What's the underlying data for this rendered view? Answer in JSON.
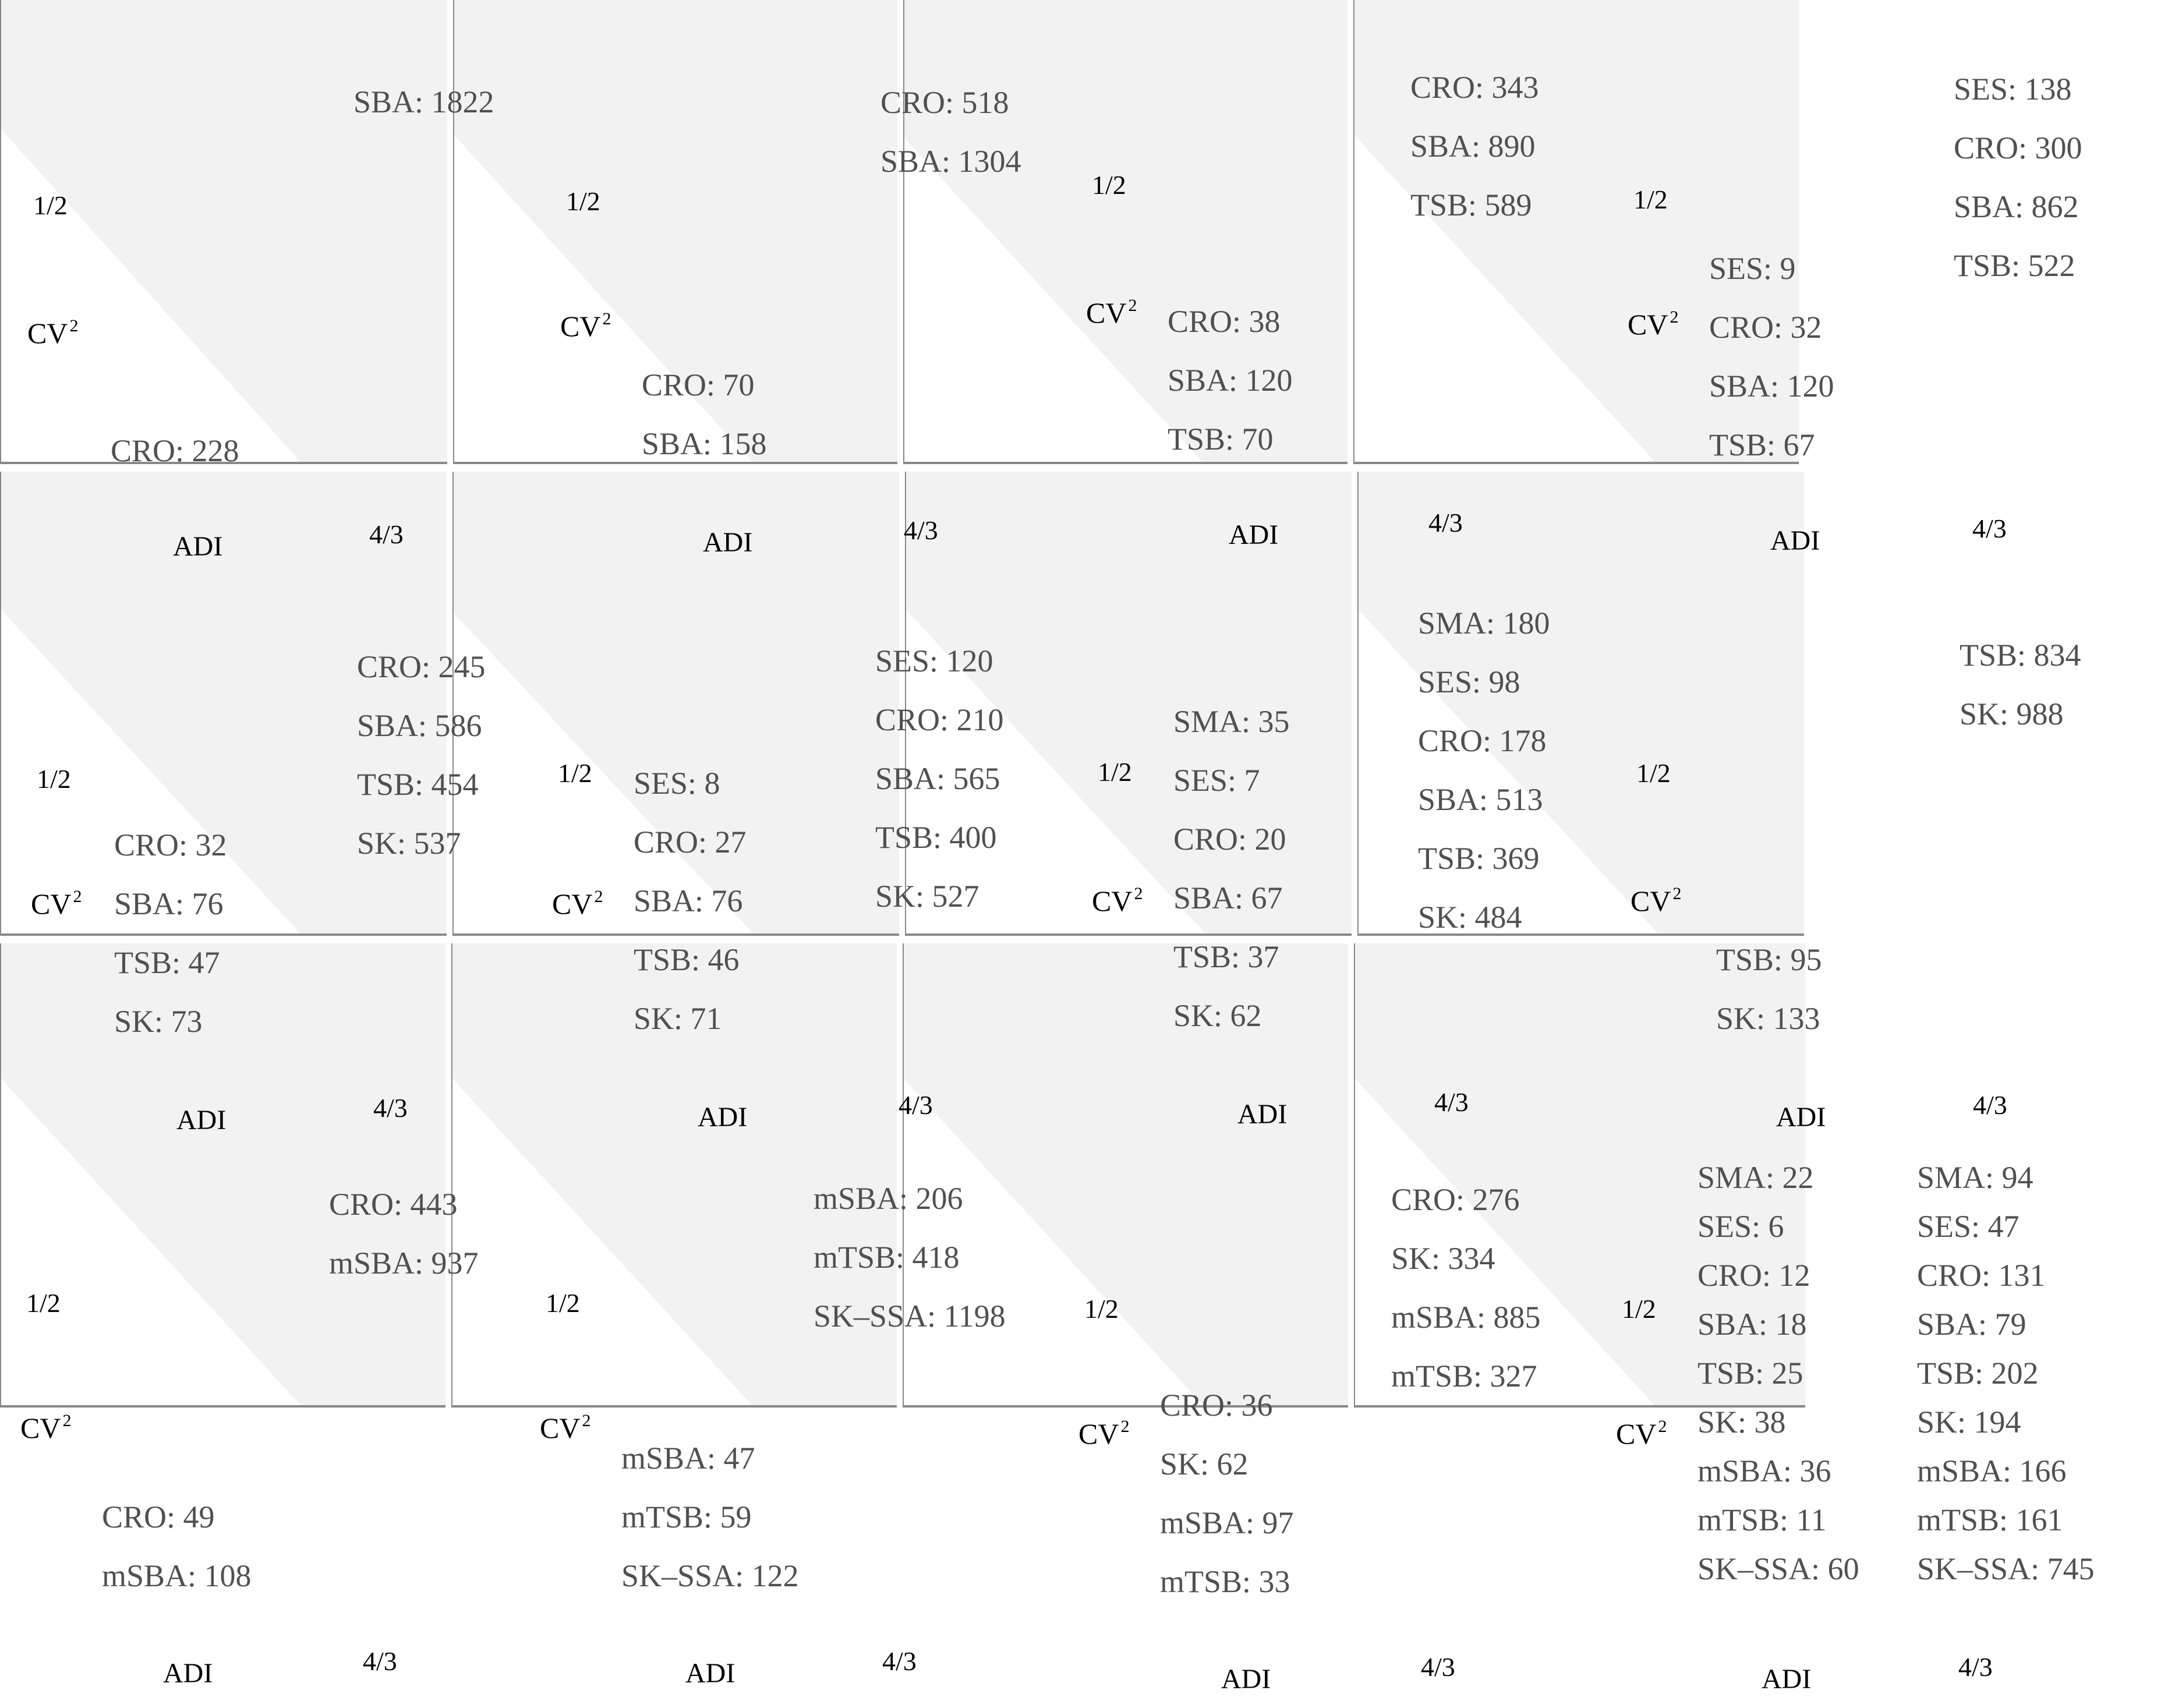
{
  "colors": {
    "shaded": "#f2f2f2",
    "axis": "#888888",
    "text": "#505050"
  },
  "panels": [
    {
      "x_label": "ADI",
      "x_tick": "4/3",
      "y_label": "CV",
      "y_label_sup": "2",
      "y_tick": "1/2",
      "upper": [
        "SBA: 1822"
      ],
      "lower": [
        "CRO: 228"
      ]
    },
    {
      "x_label": "ADI",
      "x_tick": "4/3",
      "y_label": "CV",
      "y_label_sup": "2",
      "y_tick": "1/2",
      "upper": [
        "CRO: 518",
        "SBA: 1304"
      ],
      "lower": [
        "CRO: 70",
        "SBA: 158"
      ]
    },
    {
      "x_label": "ADI",
      "x_tick": "4/3",
      "y_label": "CV",
      "y_label_sup": "2",
      "y_tick": "1/2",
      "upper": [
        "CRO: 343",
        "SBA: 890",
        "TSB: 589"
      ],
      "lower": [
        "CRO: 38",
        "SBA: 120",
        "TSB: 70"
      ]
    },
    {
      "x_label": "ADI",
      "x_tick": "4/3",
      "y_label": "CV",
      "y_label_sup": "2",
      "y_tick": "1/2",
      "upper": [
        "SES: 138",
        "CRO: 300",
        "SBA: 862",
        "TSB: 522"
      ],
      "lower": [
        "SES: 9",
        "CRO: 32",
        "SBA: 120",
        "TSB: 67"
      ]
    },
    {
      "x_label": "ADI",
      "x_tick": "4/3",
      "y_label": "CV",
      "y_label_sup": "2",
      "y_tick": "1/2",
      "upper": [
        "CRO: 245",
        "SBA: 586",
        "TSB: 454",
        "SK: 537"
      ],
      "lower": [
        "CRO: 32",
        "SBA: 76",
        "TSB: 47",
        "SK: 73"
      ]
    },
    {
      "x_label": "ADI",
      "x_tick": "4/3",
      "y_label": "CV",
      "y_label_sup": "2",
      "y_tick": "1/2",
      "upper": [
        "SES: 120",
        "CRO: 210",
        "SBA: 565",
        "TSB: 400",
        "SK: 527"
      ],
      "lower": [
        "SES: 8",
        "CRO: 27",
        "SBA: 76",
        "TSB: 46",
        "SK: 71"
      ]
    },
    {
      "x_label": "ADI",
      "x_tick": "4/3",
      "y_label": "CV",
      "y_label_sup": "2",
      "y_tick": "1/2",
      "upper": [
        "SMA: 180",
        "SES: 98",
        "CRO: 178",
        "SBA: 513",
        "TSB: 369",
        "SK: 484"
      ],
      "lower": [
        "SMA: 35",
        "SES: 7",
        "CRO: 20",
        "SBA: 67",
        "TSB: 37",
        "SK: 62"
      ]
    },
    {
      "x_label": "ADI",
      "x_tick": "4/3",
      "y_label": "CV",
      "y_label_sup": "2",
      "y_tick": "1/2",
      "upper": [
        "TSB: 834",
        "SK: 988"
      ],
      "lower": [
        "TSB: 95",
        "SK: 133"
      ]
    },
    {
      "x_label": "ADI",
      "x_tick": "4/3",
      "y_label": "CV",
      "y_label_sup": "2",
      "y_tick": "1/2",
      "upper": [
        "CRO: 443",
        "mSBA: 937"
      ],
      "lower": [
        "CRO: 49",
        "mSBA: 108"
      ]
    },
    {
      "x_label": "ADI",
      "x_tick": "4/3",
      "y_label": "CV",
      "y_label_sup": "2",
      "y_tick": "1/2",
      "upper": [
        "mSBA: 206",
        "mTSB: 418",
        "SK–SSA: 1198"
      ],
      "lower": [
        "mSBA: 47",
        "mTSB: 59",
        "SK–SSA: 122"
      ]
    },
    {
      "x_label": "ADI",
      "x_tick": "4/3",
      "y_label": "CV",
      "y_label_sup": "2",
      "y_tick": "1/2",
      "upper": [
        "CRO: 276",
        "SK: 334",
        "mSBA: 885",
        "mTSB: 327"
      ],
      "lower": [
        "CRO: 36",
        "SK: 62",
        "mSBA: 97",
        "mTSB: 33"
      ]
    },
    {
      "x_label": "ADI",
      "x_tick": "4/3",
      "y_label": "CV",
      "y_label_sup": "2",
      "y_tick": "1/2",
      "upper": [
        "SMA: 94",
        "SES: 47",
        "CRO: 131",
        "SBA: 79",
        "TSB: 202",
        "SK: 194",
        "mSBA: 166",
        "mTSB: 161",
        "SK–SSA: 745"
      ],
      "lower": [
        "SMA: 22",
        "SES: 6",
        "CRO: 12",
        "SBA: 18",
        "TSB: 25",
        "SK: 38",
        "mSBA: 36",
        "mTSB: 11",
        "SK–SSA: 60"
      ]
    }
  ]
}
